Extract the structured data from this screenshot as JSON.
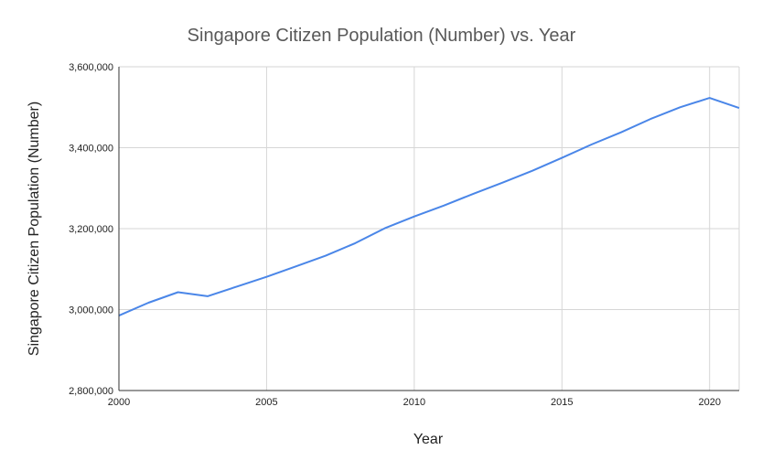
{
  "chart_data": {
    "type": "line",
    "title": "Singapore Citizen Population (Number) vs. Year",
    "xlabel": "Year",
    "ylabel": "Singapore Citizen Population (Number)",
    "xlim": [
      2000,
      2021
    ],
    "ylim": [
      2800000,
      3600000
    ],
    "x_ticks": [
      2000,
      2005,
      2010,
      2015,
      2020
    ],
    "x_tick_labels": [
      "2000",
      "2005",
      "2010",
      "2015",
      "2020"
    ],
    "y_ticks": [
      2800000,
      3000000,
      3200000,
      3400000,
      3600000
    ],
    "y_tick_labels": [
      "2,800,000",
      "3,000,000",
      "3,200,000",
      "3,400,000",
      "3,600,000"
    ],
    "grid": true,
    "legend": "none",
    "series": [
      {
        "color": "#4a86e8",
        "x": [
          2000,
          2001,
          2002,
          2003,
          2004,
          2005,
          2006,
          2007,
          2008,
          2009,
          2010,
          2011,
          2012,
          2013,
          2014,
          2015,
          2016,
          2017,
          2018,
          2019,
          2020,
          2021
        ],
        "values": [
          2985000,
          3017000,
          3043000,
          3033000,
          3057000,
          3081000,
          3107000,
          3133000,
          3164000,
          3201000,
          3230000,
          3257000,
          3286000,
          3314000,
          3343000,
          3375000,
          3408000,
          3438000,
          3471000,
          3500000,
          3523000,
          3498000
        ]
      }
    ]
  }
}
